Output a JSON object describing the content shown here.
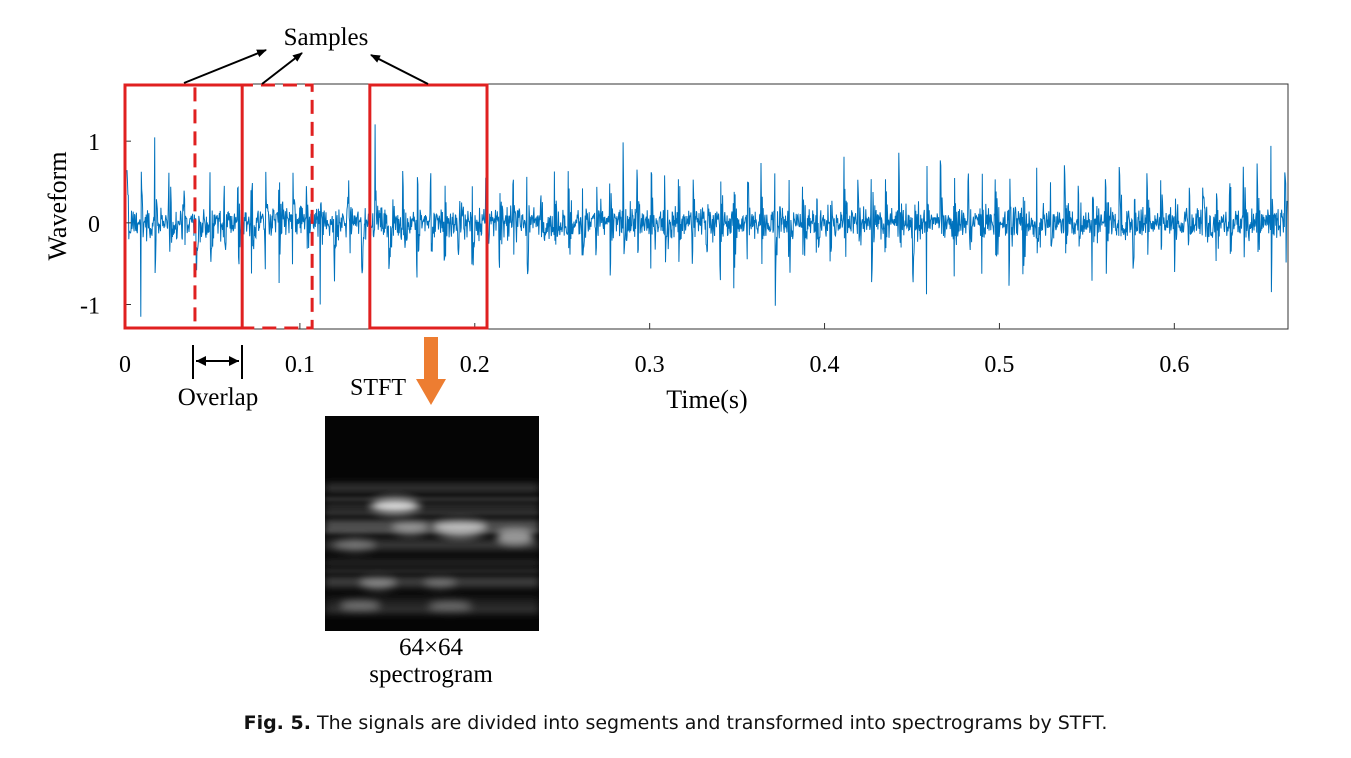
{
  "samples_label": "Samples",
  "overlap_label": "Overlap",
  "stft_label": "STFT",
  "spectrogram": {
    "size_label": "64×64",
    "name_label": "spectrogram"
  },
  "caption": {
    "label": "Fig. 5.",
    "text": "The signals are divided into segments and transformed into spectrograms by STFT."
  },
  "colors": {
    "signal": "#0072BD",
    "window": "#e02020",
    "arrow": "#ed7d31"
  },
  "chart_data": {
    "type": "line",
    "title": "",
    "xlabel": "Time(s)",
    "ylabel": "Waveform",
    "xlim": [
      0,
      0.665
    ],
    "ylim": [
      -1.3,
      1.7
    ],
    "xticks": [
      0,
      0.1,
      0.2,
      0.3,
      0.4,
      0.5,
      0.6
    ],
    "xtick_labels": [
      "0",
      "0.1",
      "0.2",
      "0.3",
      "0.4",
      "0.5",
      "0.6"
    ],
    "yticks": [
      1,
      0,
      -1
    ],
    "ytick_labels": [
      "1",
      "0",
      "-1"
    ],
    "grid": false,
    "sample_windows": [
      {
        "start": 0.0,
        "end": 0.067,
        "style": "solid"
      },
      {
        "start": 0.04,
        "end": 0.107,
        "style": "dashed"
      },
      {
        "start": 0.14,
        "end": 0.207,
        "style": "solid"
      }
    ]
  }
}
